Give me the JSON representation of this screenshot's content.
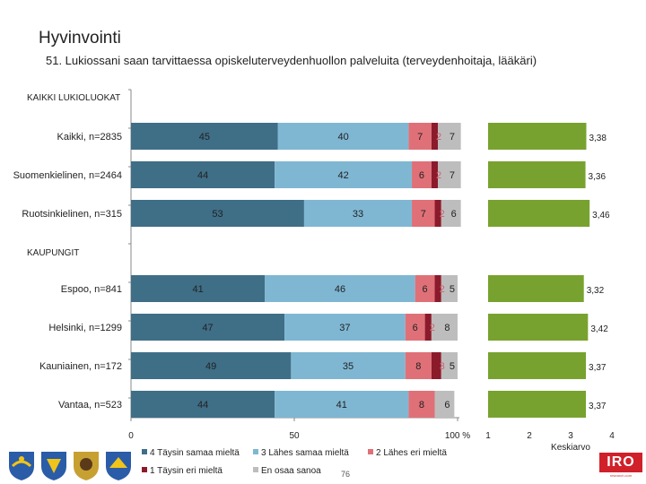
{
  "page": {
    "title": "Hyvinvointi",
    "subtitle": "51. Lukiossani saan tarvittaessa opiskeluterveydenhuollon palveluita (terveydenhoitaja, lääkäri)",
    "page_number": "76",
    "logo_text": "IRO",
    "logo_subtext": "research.com"
  },
  "chart_data": {
    "type": "bar",
    "orientation": "horizontal",
    "stacked": true,
    "groups": [
      {
        "label": "KAIKKI LUKIOLUOKAT",
        "rows": [
          0,
          1,
          2
        ]
      },
      {
        "label": "KAUPUNGIT",
        "rows": [
          3,
          4,
          5,
          6
        ]
      }
    ],
    "categories": [
      "Kaikki, n=2835",
      "Suomenkielinen, n=2464",
      "Ruotsinkielinen, n=315",
      "Espoo, n=841",
      "Helsinki, n=1299",
      "Kauniainen, n=172",
      "Vantaa, n=523"
    ],
    "series": [
      {
        "name": "4 Täysin samaa mieltä",
        "color": "#3f6e87",
        "values": [
          45,
          44,
          53,
          41,
          47,
          49,
          44
        ],
        "labels": [
          "45",
          "44",
          "53",
          "41",
          "47",
          "49",
          "44"
        ]
      },
      {
        "name": "3 Lähes samaa mieltä",
        "color": "#7fb7d3",
        "values": [
          40,
          42,
          33,
          46,
          37,
          35,
          41
        ],
        "labels": [
          "40",
          "42",
          "33",
          "46",
          "37",
          "35",
          "41"
        ]
      },
      {
        "name": "2 Lähes eri mieltä",
        "color": "#e07078",
        "values": [
          7,
          6,
          7,
          6,
          6,
          8,
          8
        ],
        "labels": [
          "7",
          "6",
          "7",
          "6",
          "6",
          "8",
          "8"
        ]
      },
      {
        "name": "1 Täysin eri mieltä",
        "color": "#8b1a2b",
        "values": [
          2,
          2,
          2,
          2,
          2,
          3,
          0
        ],
        "labels": [
          "2",
          "2",
          "2",
          "2",
          "2",
          "3",
          ""
        ]
      },
      {
        "name": "En osaa sanoa",
        "color": "#bdbdbd",
        "values": [
          7,
          7,
          6,
          5,
          8,
          5,
          6
        ],
        "labels": [
          "7",
          "7",
          "6",
          "5",
          "8",
          "5",
          "6"
        ]
      }
    ],
    "axis": {
      "ticks": [
        "0",
        "50",
        "100 %"
      ],
      "xlim": [
        0,
        100
      ]
    },
    "mean": {
      "label": "Keskiarvo",
      "color": "#78a22f",
      "values": [
        3.38,
        3.36,
        3.46,
        3.32,
        3.42,
        3.37,
        3.37
      ],
      "labels": [
        "3,38",
        "3,36",
        "3,46",
        "3,32",
        "3,42",
        "3,37",
        "3,37"
      ],
      "xlim": [
        1,
        4
      ],
      "ticks": [
        "1",
        "2",
        "3",
        "4"
      ]
    },
    "legend_order": [
      [
        "4 Täysin samaa mieltä",
        "3 Lähes samaa mieltä",
        "2 Lähes eri mieltä"
      ],
      [
        "1 Täysin eri mieltä",
        "En osaa sanoa"
      ]
    ],
    "legend_position": "bottom"
  }
}
